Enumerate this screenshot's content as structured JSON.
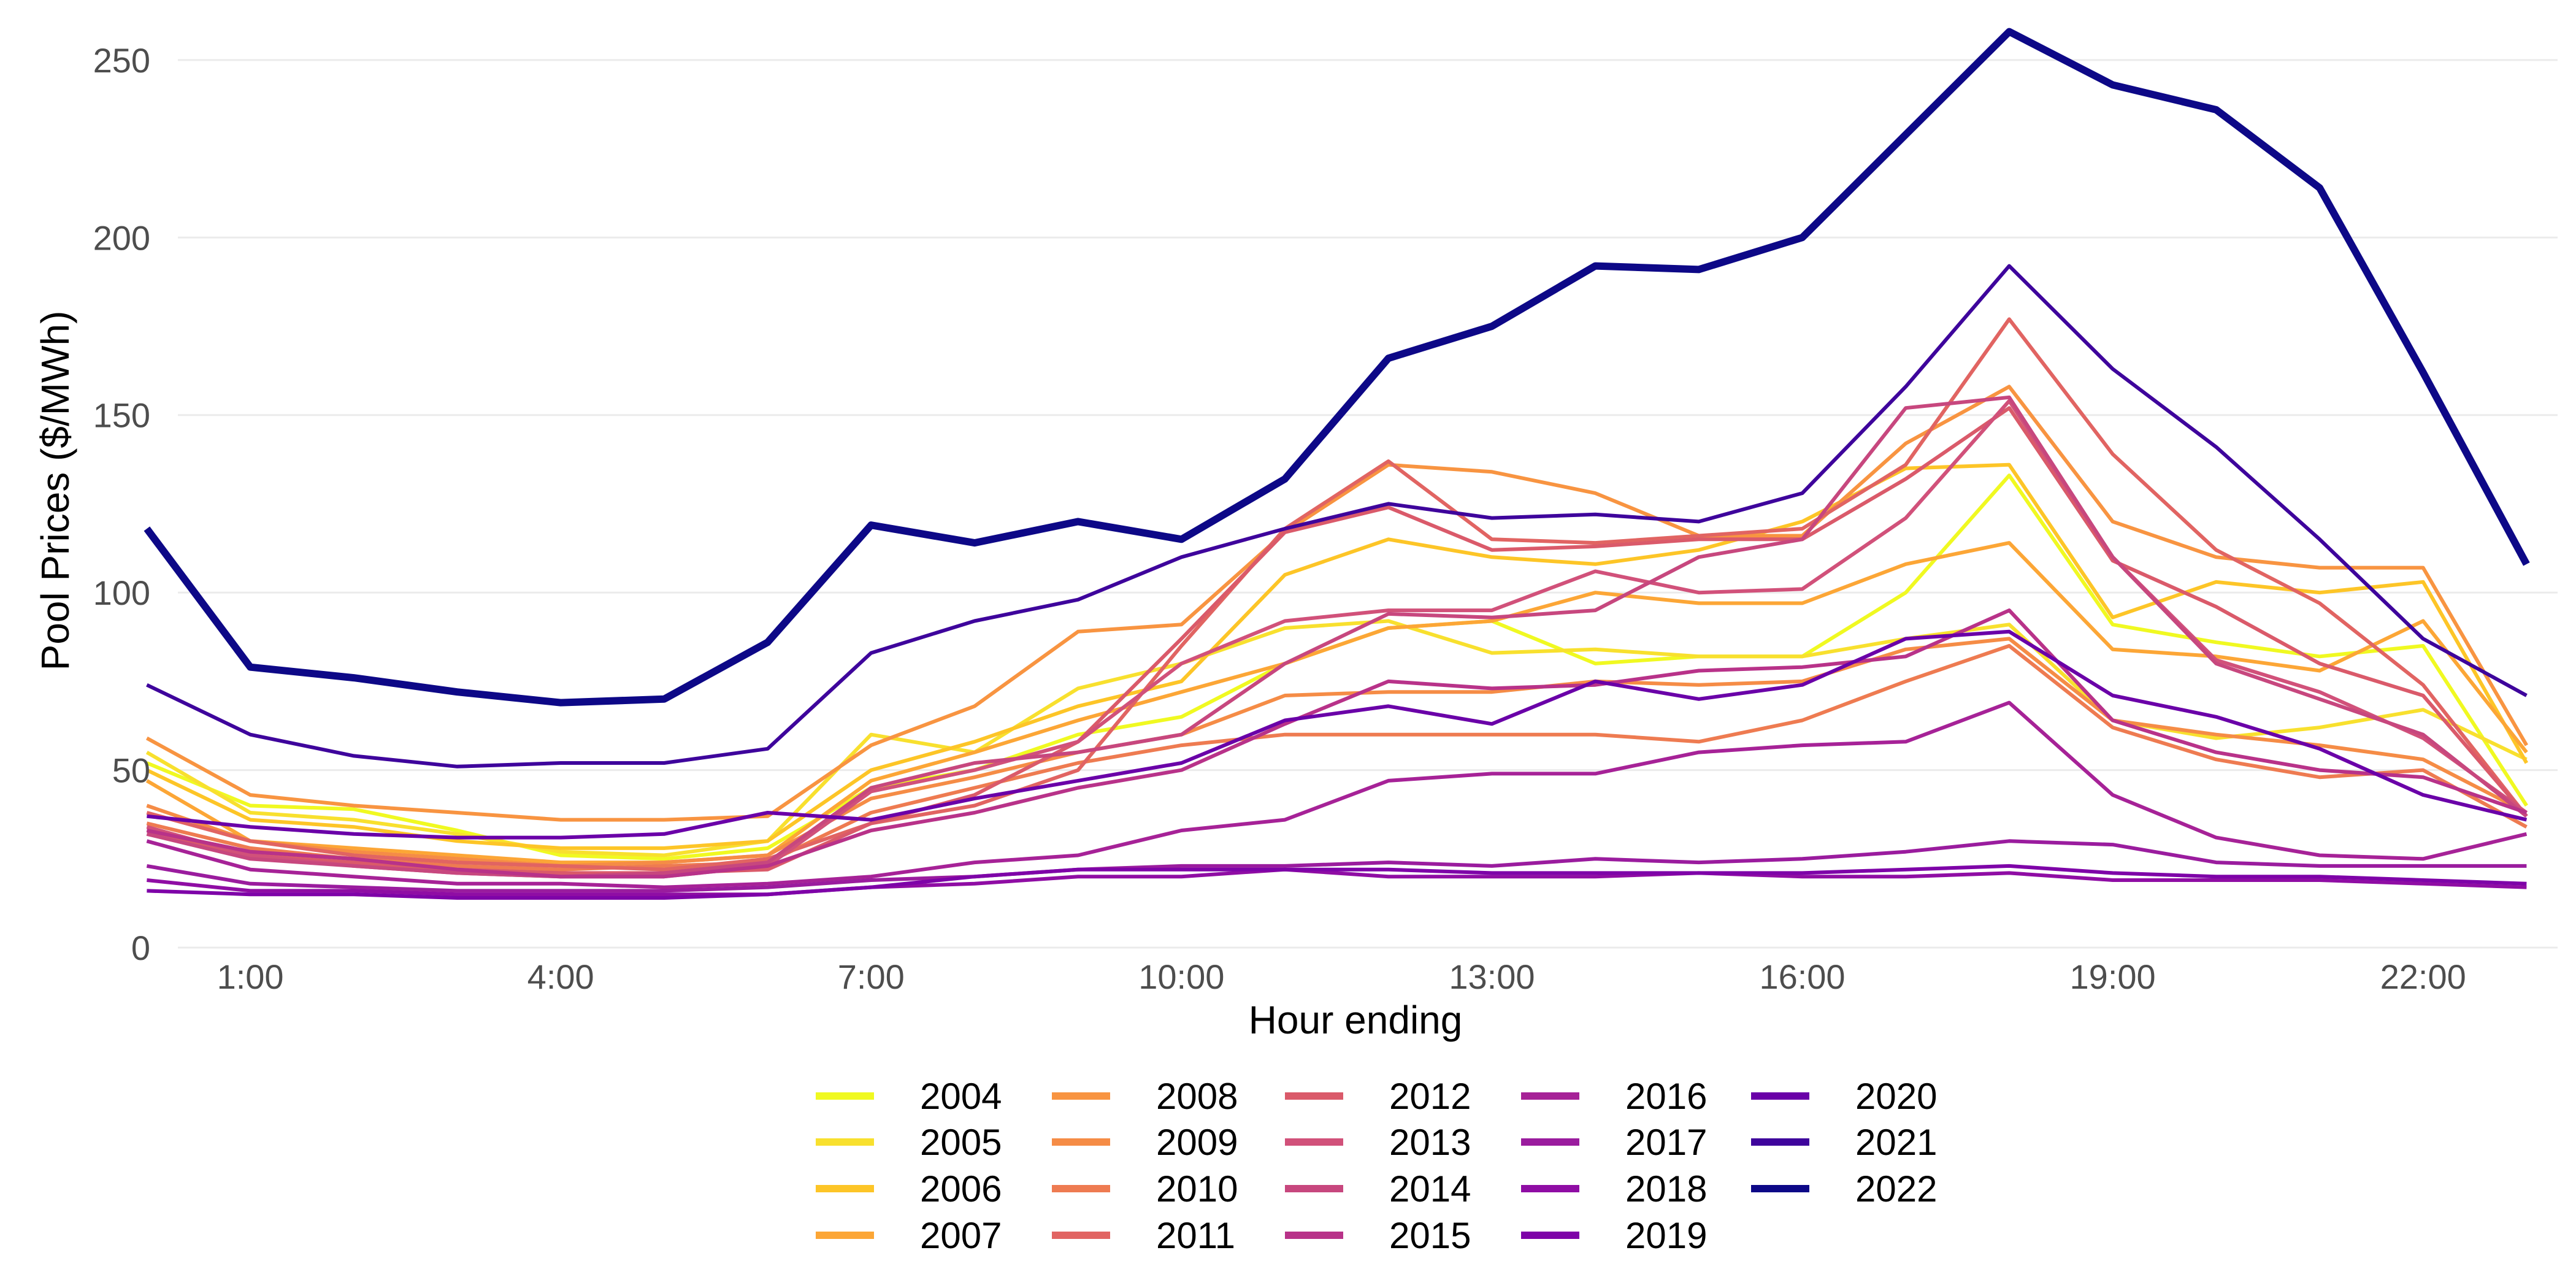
{
  "chart_data": {
    "type": "line",
    "title": "",
    "xlabel": "Hour ending",
    "ylabel": "Pool Prices ($/MWh)",
    "ylim": [
      0,
      260
    ],
    "xlim": [
      0.3,
      23.3
    ],
    "grid": true,
    "legend_position": "bottom",
    "y_ticks": [
      0,
      50,
      100,
      150,
      200,
      250
    ],
    "x_ticks": [
      {
        "value": 1,
        "label": "1:00"
      },
      {
        "value": 4,
        "label": "4:00"
      },
      {
        "value": 7,
        "label": "7:00"
      },
      {
        "value": 10,
        "label": "10:00"
      },
      {
        "value": 13,
        "label": "13:00"
      },
      {
        "value": 16,
        "label": "16:00"
      },
      {
        "value": 19,
        "label": "19:00"
      },
      {
        "value": 22,
        "label": "22:00"
      }
    ],
    "x": [
      0,
      1,
      2,
      3,
      4,
      5,
      6,
      7,
      8,
      9,
      10,
      11,
      12,
      13,
      14,
      15,
      16,
      17,
      18,
      19,
      20,
      21,
      22,
      23
    ],
    "series": [
      {
        "name": "2004",
        "color": "#F0F921",
        "values": [
          52,
          40,
          39,
          33,
          26,
          25,
          28,
          45,
          50,
          60,
          65,
          80,
          90,
          92,
          80,
          82,
          82,
          100,
          133,
          91,
          86,
          82,
          85,
          40
        ]
      },
      {
        "name": "2005",
        "color": "#F8E02E",
        "values": [
          55,
          38,
          36,
          32,
          27,
          26,
          30,
          60,
          55,
          73,
          80,
          90,
          92,
          83,
          84,
          82,
          82,
          87,
          91,
          64,
          59,
          62,
          67,
          53
        ]
      },
      {
        "name": "2006",
        "color": "#FDC527",
        "values": [
          50,
          36,
          34,
          30,
          28,
          28,
          30,
          50,
          58,
          68,
          75,
          105,
          115,
          110,
          108,
          112,
          120,
          135,
          136,
          93,
          103,
          100,
          103,
          52
        ]
      },
      {
        "name": "2007",
        "color": "#FCA636",
        "values": [
          47,
          30,
          28,
          26,
          24,
          24,
          26,
          47,
          55,
          64,
          72,
          80,
          90,
          92,
          100,
          97,
          97,
          108,
          114,
          84,
          82,
          78,
          92,
          55
        ]
      },
      {
        "name": "2008",
        "color": "#F89441",
        "values": [
          59,
          43,
          40,
          38,
          36,
          36,
          37,
          57,
          68,
          89,
          91,
          117,
          136,
          134,
          128,
          116,
          116,
          142,
          158,
          120,
          110,
          107,
          107,
          57
        ]
      },
      {
        "name": "2009",
        "color": "#F58C46",
        "values": [
          40,
          30,
          27,
          25,
          23,
          24,
          26,
          42,
          48,
          55,
          60,
          71,
          72,
          72,
          75,
          74,
          75,
          84,
          87,
          64,
          60,
          57,
          53,
          38
        ]
      },
      {
        "name": "2010",
        "color": "#EE7B51",
        "values": [
          35,
          28,
          25,
          23,
          22,
          23,
          24,
          38,
          45,
          52,
          57,
          60,
          60,
          60,
          60,
          58,
          64,
          75,
          85,
          62,
          53,
          48,
          50,
          34
        ]
      },
      {
        "name": "2011",
        "color": "#E16462",
        "values": [
          38,
          30,
          26,
          24,
          23,
          22,
          25,
          35,
          40,
          50,
          85,
          118,
          137,
          115,
          114,
          116,
          118,
          136,
          177,
          139,
          112,
          97,
          74,
          37
        ]
      },
      {
        "name": "2012",
        "color": "#DA5A6A",
        "values": [
          33,
          26,
          24,
          22,
          21,
          21,
          22,
          35,
          43,
          58,
          87,
          117,
          124,
          112,
          113,
          115,
          115,
          132,
          152,
          109,
          96,
          80,
          71,
          37
        ]
      },
      {
        "name": "2013",
        "color": "#D1517A",
        "values": [
          34,
          26,
          23,
          21,
          20,
          20,
          23,
          44,
          50,
          58,
          80,
          92,
          95,
          95,
          106,
          100,
          101,
          121,
          154,
          110,
          81,
          72,
          59,
          38
        ]
      },
      {
        "name": "2014",
        "color": "#C7477E",
        "values": [
          32,
          25,
          23,
          21,
          20,
          21,
          24,
          45,
          52,
          55,
          60,
          80,
          94,
          93,
          95,
          110,
          115,
          152,
          155,
          110,
          80,
          70,
          60,
          37
        ]
      },
      {
        "name": "2015",
        "color": "#B83289",
        "values": [
          33,
          27,
          25,
          22,
          20,
          20,
          23,
          33,
          38,
          45,
          50,
          63,
          75,
          73,
          74,
          78,
          79,
          82,
          95,
          64,
          55,
          50,
          48,
          38
        ]
      },
      {
        "name": "2016",
        "color": "#A62297",
        "values": [
          30,
          22,
          20,
          18,
          18,
          17,
          18,
          20,
          24,
          26,
          33,
          36,
          47,
          49,
          49,
          55,
          57,
          58,
          69,
          43,
          31,
          26,
          25,
          32
        ]
      },
      {
        "name": "2017",
        "color": "#9A1C9E",
        "values": [
          23,
          18,
          17,
          16,
          16,
          16,
          17,
          19,
          20,
          22,
          23,
          23,
          24,
          23,
          25,
          24,
          25,
          27,
          30,
          29,
          24,
          23,
          23,
          23
        ]
      },
      {
        "name": "2018",
        "color": "#8F0DA4",
        "values": [
          19,
          16,
          16,
          15,
          15,
          15,
          15,
          17,
          18,
          20,
          20,
          22,
          20,
          20,
          20,
          21,
          20,
          20,
          21,
          19,
          19,
          19,
          18,
          17
        ]
      },
      {
        "name": "2019",
        "color": "#7E03A8",
        "values": [
          16,
          15,
          15,
          14,
          14,
          14,
          15,
          17,
          20,
          22,
          22,
          22,
          22,
          21,
          21,
          21,
          21,
          22,
          23,
          21,
          20,
          20,
          19,
          18
        ]
      },
      {
        "name": "2020",
        "color": "#6A00A8",
        "values": [
          37,
          34,
          32,
          31,
          31,
          32,
          38,
          36,
          42,
          47,
          52,
          64,
          68,
          63,
          75,
          70,
          74,
          87,
          89,
          71,
          65,
          56,
          43,
          36
        ]
      },
      {
        "name": "2021",
        "color": "#3E049C",
        "values": [
          74,
          60,
          54,
          51,
          52,
          52,
          56,
          83,
          92,
          98,
          110,
          118,
          125,
          121,
          122,
          120,
          128,
          158,
          192,
          163,
          141,
          115,
          87,
          71
        ]
      },
      {
        "name": "2022",
        "color": "#0D0887",
        "values": [
          118,
          79,
          76,
          72,
          69,
          70,
          86,
          119,
          114,
          120,
          115,
          132,
          166,
          175,
          192,
          191,
          200,
          229,
          258,
          243,
          236,
          214,
          162,
          108
        ]
      }
    ]
  }
}
